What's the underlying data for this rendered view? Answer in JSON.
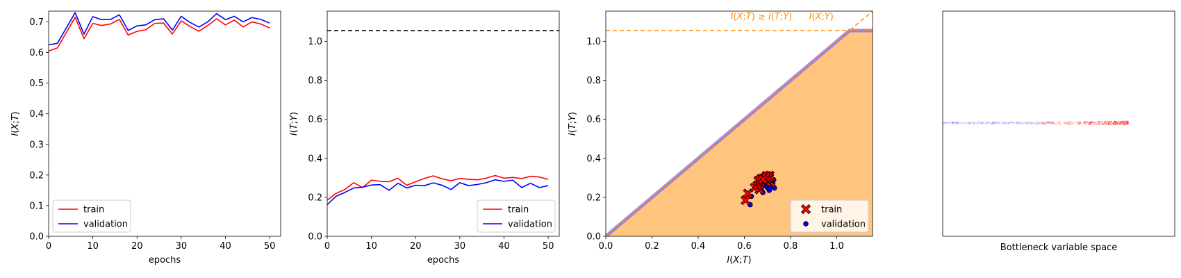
{
  "chart_data": [
    {
      "id": "p1",
      "type": "line",
      "xlabel": "epochs",
      "ylabel": "I(X;T)",
      "xlim": [
        0,
        52.5
      ],
      "ylim": [
        0,
        0.735
      ],
      "xticks": [
        0,
        10,
        20,
        30,
        40,
        50
      ],
      "yticks": [
        0.0,
        0.1,
        0.2,
        0.3,
        0.4,
        0.5,
        0.6,
        0.7
      ],
      "x": [
        0,
        2,
        4,
        6,
        8,
        10,
        12,
        14,
        16,
        18,
        20,
        22,
        24,
        26,
        28,
        30,
        32,
        34,
        36,
        38,
        40,
        42,
        44,
        46,
        48,
        50
      ],
      "series": [
        {
          "name": "train",
          "color": "#ff0000",
          "values": [
            0.605,
            0.615,
            0.665,
            0.715,
            0.645,
            0.695,
            0.688,
            0.693,
            0.708,
            0.657,
            0.669,
            0.674,
            0.695,
            0.696,
            0.66,
            0.703,
            0.685,
            0.669,
            0.688,
            0.71,
            0.69,
            0.706,
            0.683,
            0.7,
            0.693,
            0.68
          ]
        },
        {
          "name": "validation",
          "color": "#0000ff",
          "values": [
            0.625,
            0.63,
            0.68,
            0.73,
            0.66,
            0.717,
            0.707,
            0.708,
            0.723,
            0.672,
            0.687,
            0.69,
            0.707,
            0.71,
            0.673,
            0.718,
            0.698,
            0.683,
            0.7,
            0.727,
            0.707,
            0.718,
            0.7,
            0.714,
            0.708,
            0.696
          ]
        }
      ],
      "legend": {
        "loc": "lower left",
        "entries": [
          "train",
          "validation"
        ]
      }
    },
    {
      "id": "p2",
      "type": "line",
      "xlabel": "epochs",
      "ylabel": "I(T;Y)",
      "xlim": [
        0,
        52.5
      ],
      "ylim": [
        0,
        1.155
      ],
      "xticks": [
        0,
        10,
        20,
        30,
        40,
        50
      ],
      "yticks": [
        0.0,
        0.2,
        0.4,
        0.6,
        0.8,
        1.0
      ],
      "hline": {
        "value": 1.055,
        "color": "#000000",
        "style": "dashed"
      },
      "x": [
        0,
        2,
        4,
        6,
        8,
        10,
        12,
        14,
        16,
        18,
        20,
        22,
        24,
        26,
        28,
        30,
        32,
        34,
        36,
        38,
        40,
        42,
        44,
        46,
        48,
        50
      ],
      "series": [
        {
          "name": "train",
          "color": "#ff0000",
          "values": [
            0.185,
            0.22,
            0.24,
            0.275,
            0.25,
            0.288,
            0.282,
            0.28,
            0.298,
            0.262,
            0.28,
            0.297,
            0.31,
            0.295,
            0.285,
            0.297,
            0.292,
            0.29,
            0.298,
            0.312,
            0.298,
            0.302,
            0.296,
            0.308,
            0.304,
            0.292
          ]
        },
        {
          "name": "validation",
          "color": "#0000ff",
          "values": [
            0.162,
            0.205,
            0.225,
            0.248,
            0.252,
            0.263,
            0.265,
            0.236,
            0.272,
            0.248,
            0.262,
            0.26,
            0.274,
            0.262,
            0.24,
            0.275,
            0.26,
            0.266,
            0.275,
            0.29,
            0.282,
            0.288,
            0.25,
            0.272,
            0.25,
            0.26
          ]
        }
      ],
      "legend": {
        "loc": "lower right",
        "entries": [
          "train",
          "validation"
        ]
      }
    },
    {
      "id": "p3",
      "type": "scatter",
      "xlabel": "I(X;T)",
      "ylabel": "I(T;Y)",
      "xlim": [
        0,
        1.155
      ],
      "ylim": [
        0,
        1.155
      ],
      "xticks": [
        0.0,
        0.2,
        0.4,
        0.6,
        0.8,
        1.0
      ],
      "yticks": [
        0.0,
        0.2,
        0.4,
        0.6,
        0.8,
        1.0
      ],
      "hyx": 1.055,
      "region_color": "#ffc57f",
      "boundary_color": "#7b68ee",
      "annotations": [
        "I(X;T) ≥ I(T;Y)",
        "I(X;Y)"
      ],
      "series": [
        {
          "name": "train",
          "color": "#ff0000",
          "marker": "X",
          "x": [
            0.605,
            0.615,
            0.665,
            0.715,
            0.645,
            0.695,
            0.688,
            0.693,
            0.708,
            0.657,
            0.669,
            0.674,
            0.695,
            0.696,
            0.66,
            0.703,
            0.685,
            0.669,
            0.688,
            0.71,
            0.69,
            0.706,
            0.683,
            0.7,
            0.693,
            0.68
          ],
          "y": [
            0.185,
            0.22,
            0.24,
            0.275,
            0.25,
            0.288,
            0.282,
            0.28,
            0.298,
            0.262,
            0.28,
            0.297,
            0.31,
            0.295,
            0.285,
            0.297,
            0.292,
            0.29,
            0.298,
            0.312,
            0.298,
            0.302,
            0.296,
            0.308,
            0.304,
            0.292
          ]
        },
        {
          "name": "validation",
          "color": "#0000ff",
          "marker": "o",
          "x": [
            0.625,
            0.63,
            0.68,
            0.73,
            0.66,
            0.717,
            0.707,
            0.708,
            0.723,
            0.672,
            0.687,
            0.69,
            0.707,
            0.71,
            0.673,
            0.718,
            0.698,
            0.683,
            0.7,
            0.727,
            0.707,
            0.718,
            0.7,
            0.714,
            0.708,
            0.696
          ],
          "y": [
            0.162,
            0.205,
            0.225,
            0.248,
            0.252,
            0.263,
            0.265,
            0.236,
            0.272,
            0.248,
            0.262,
            0.26,
            0.274,
            0.262,
            0.24,
            0.275,
            0.26,
            0.266,
            0.275,
            0.29,
            0.282,
            0.288,
            0.25,
            0.272,
            0.25,
            0.26
          ]
        }
      ],
      "legend": {
        "loc": "lower right",
        "entries": [
          "train",
          "validation"
        ]
      }
    },
    {
      "id": "p4",
      "type": "scatter",
      "xlabel": "Bottleneck variable space",
      "xlim": [
        0,
        1
      ],
      "ylim": [
        0,
        1
      ],
      "band_y": 0.505,
      "bands": [
        {
          "name": "validation",
          "color": "#0000ff",
          "x_range": [
            0.0,
            0.48
          ],
          "opacity": 0.25
        },
        {
          "name": "train",
          "color": "#ff0000",
          "x_range": [
            0.3,
            0.8
          ],
          "opacity": 0.55
        }
      ]
    }
  ]
}
